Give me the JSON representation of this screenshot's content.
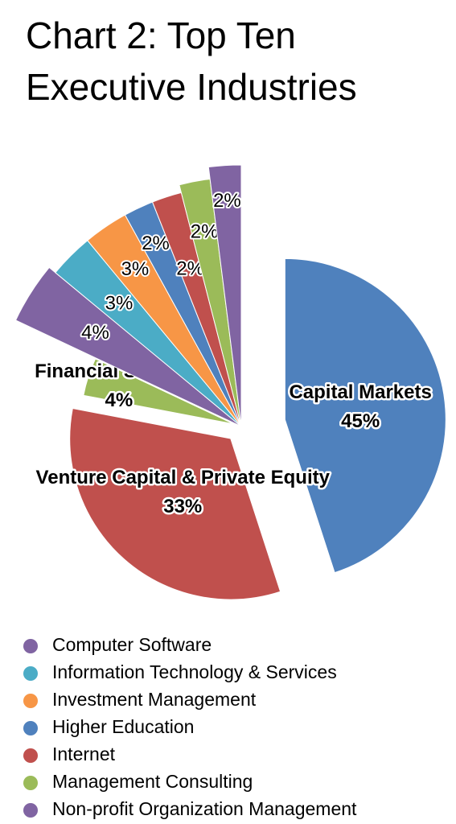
{
  "chart_data": {
    "type": "pie",
    "title": "Chart 2: Top Ten Executive Industries",
    "categories": [
      "Capital Markets",
      "Venture Capital & Private Equity",
      "Financial Services",
      "Computer Software",
      "Information Technology & Services",
      "Investment Management",
      "Higher Education",
      "Internet",
      "Management Consulting",
      "Non-profit Organization Management"
    ],
    "values": [
      45,
      33,
      4,
      4,
      3,
      3,
      2,
      2,
      2,
      2
    ],
    "value_labels": [
      "45%",
      "33%",
      "4%",
      "4%",
      "3%",
      "3%",
      "2%",
      "2%",
      "2%",
      "2%"
    ],
    "colors": [
      "#4f81bd",
      "#c0504d",
      "#9bbb59",
      "#8064a2",
      "#4bacc6",
      "#f79646",
      "#4f81bd",
      "#c0504d",
      "#9bbb59",
      "#8064a2"
    ],
    "name_in_pie": [
      true,
      true,
      true,
      false,
      false,
      false,
      false,
      false,
      false,
      false
    ]
  }
}
